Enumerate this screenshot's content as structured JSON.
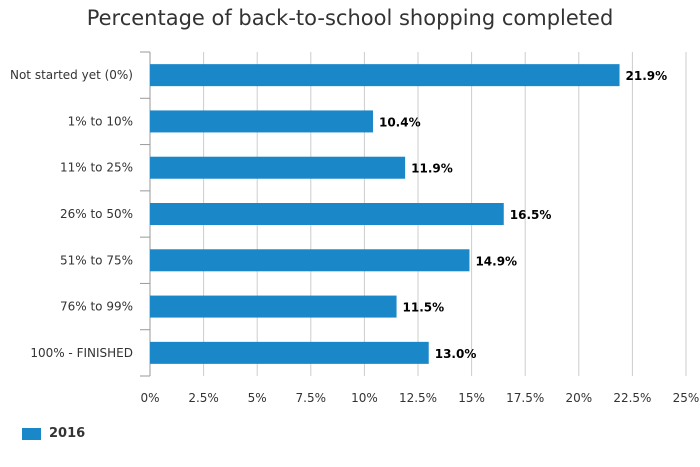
{
  "chart_data": {
    "type": "bar",
    "orientation": "horizontal",
    "title": "Percentage of back-to-school shopping completed",
    "categories": [
      "Not started yet (0%)",
      "1% to 10%",
      "11% to 25%",
      "26% to 50%",
      "51% to 75%",
      "76% to 99%",
      "100% - FINISHED"
    ],
    "series": [
      {
        "name": "2016",
        "values": [
          21.9,
          10.4,
          11.9,
          16.5,
          14.9,
          11.5,
          13.0
        ]
      }
    ],
    "value_labels": [
      "21.9%",
      "10.4%",
      "11.9%",
      "16.5%",
      "14.9%",
      "11.5%",
      "13.0%"
    ],
    "xlim": [
      0,
      25
    ],
    "xticks": [
      0,
      2.5,
      5,
      7.5,
      10,
      12.5,
      15,
      17.5,
      20,
      22.5,
      25
    ],
    "xtick_labels": [
      "0%",
      "2.5%",
      "5%",
      "7.5%",
      "10%",
      "12.5%",
      "15%",
      "17.5%",
      "20%",
      "22.5%",
      "25%"
    ],
    "grid": true,
    "legend_position": "bottom-left"
  },
  "colors": {
    "bar": "#1a87c9",
    "grid": "#cccccc",
    "axis": "#999999",
    "text": "#333333"
  }
}
